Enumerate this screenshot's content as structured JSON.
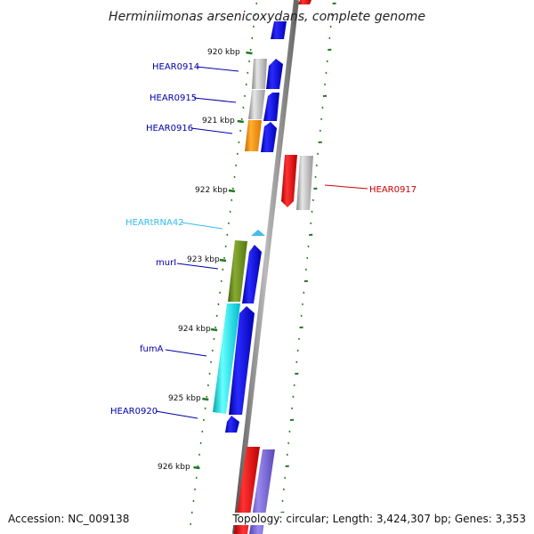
{
  "title": "Herminiimonas arsenicoxydans, complete genome",
  "footer": {
    "accession": "Accession: NC_009138",
    "topology": "Topology: circular; Length: 3,424,307 bp; Genes: 3,353"
  },
  "ticks": [
    {
      "label": "920 kbp",
      "kbp": 920
    },
    {
      "label": "921 kbp",
      "kbp": 921
    },
    {
      "label": "922 kbp",
      "kbp": 922
    },
    {
      "label": "923 kbp",
      "kbp": 923
    },
    {
      "label": "924 kbp",
      "kbp": 924
    },
    {
      "label": "925 kbp",
      "kbp": 925
    },
    {
      "label": "926 kbp",
      "kbp": 926
    }
  ],
  "gene_labels": [
    {
      "text": "HEAR0914",
      "color": "#0000aa"
    },
    {
      "text": "HEAR0915",
      "color": "#0000aa"
    },
    {
      "text": "HEAR0916",
      "color": "#0000aa"
    },
    {
      "text": "HEAR0917",
      "color": "#cc0000"
    },
    {
      "text": "HEARtRNA42",
      "color": "#33bbee"
    },
    {
      "text": "murI",
      "color": "#0000aa"
    },
    {
      "text": "fumA",
      "color": "#0000aa"
    },
    {
      "text": "HEAR0920",
      "color": "#0000aa"
    }
  ],
  "colors": {
    "gray": "#bbbbbb",
    "orange": "#ff9900",
    "olive": "#669922",
    "cyan": "#00e5ee",
    "blue": "#0000ee",
    "red": "#ee0000",
    "purple": "#7766dd",
    "trna": "#44bbee",
    "backbone": "#888888",
    "tick": "#227722"
  }
}
